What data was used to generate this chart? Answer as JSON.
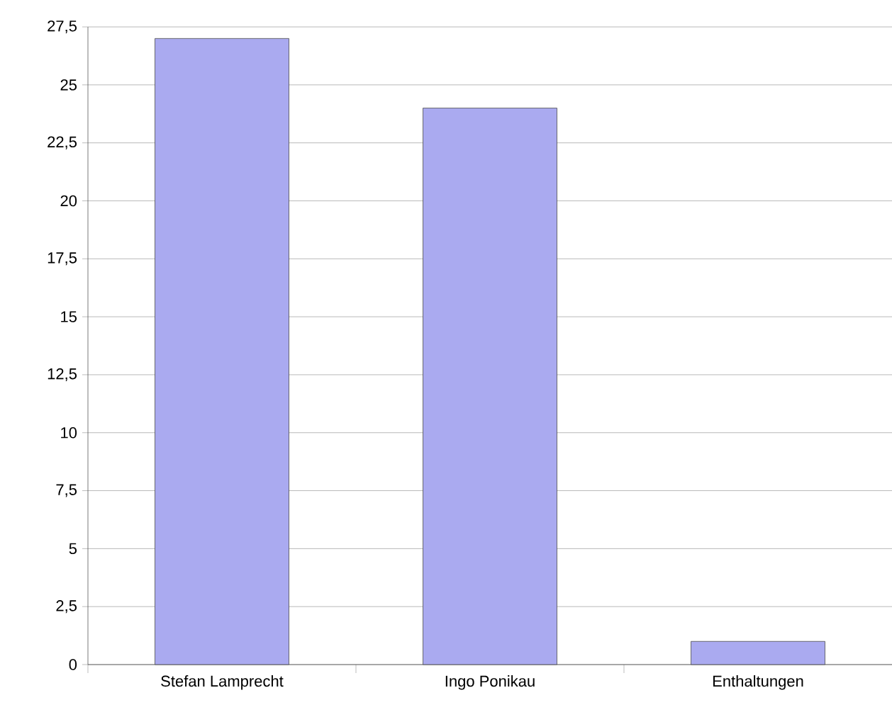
{
  "chart_data": {
    "type": "bar",
    "categories": [
      "Stefan Lamprecht",
      "Ingo Ponikau",
      "Enthaltungen"
    ],
    "values": [
      27,
      24,
      1
    ],
    "color": "#aaaaf0",
    "ylim": [
      0,
      27.5
    ],
    "yticks": [
      0,
      {
        "value": 2.5,
        "label": "2,5"
      },
      5,
      {
        "value": 7.5,
        "label": "7,5"
      },
      10,
      {
        "value": 12.5,
        "label": "12,5"
      },
      15,
      {
        "value": 17.5,
        "label": "17,5"
      },
      20,
      {
        "value": 22.5,
        "label": "22,5"
      },
      25,
      {
        "value": 27.5,
        "label": "27,5"
      }
    ],
    "grid": "y"
  }
}
